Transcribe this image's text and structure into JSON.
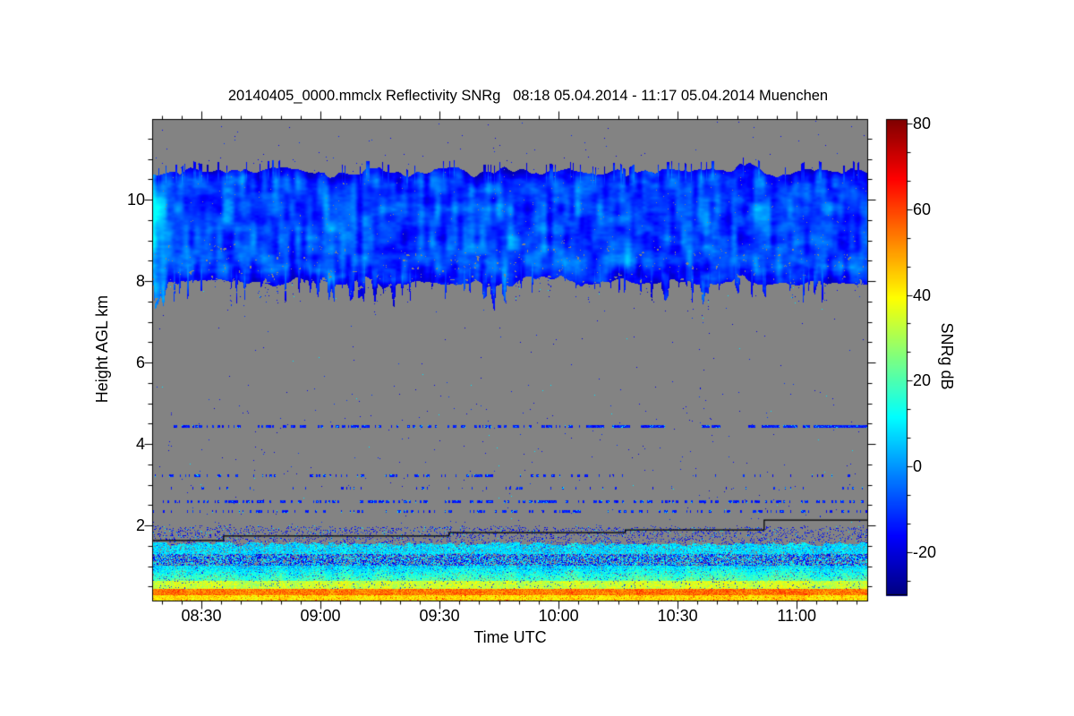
{
  "title": "20140405_0000.mmclx Reflectivity SNRg   08:18 05.04.2014 - 11:17 05.04.2014 Muenchen",
  "chart_data": {
    "type": "heatmap",
    "title": "20140405_0000.mmclx Reflectivity SNRg   08:18 05.04.2014 - 11:17 05.04.2014 Muenchen",
    "station": "Muenchen",
    "file": "20140405_0000.mmclx",
    "quantity": "Reflectivity SNRg",
    "time_start_label": "08:18 05.04.2014",
    "time_end_label": "11:17 05.04.2014",
    "xlabel": "Time UTC",
    "ylabel": "Height AGL km",
    "colorbar_label": "SNRg dB",
    "colormap": "jet",
    "nodata_color": "#838383",
    "grid": false,
    "x_axis": {
      "start_min": 497.6,
      "end_min": 678.0,
      "minor_step_min": 5,
      "ticks": [
        {
          "label": "08:30",
          "min": 510
        },
        {
          "label": "09:00",
          "min": 540
        },
        {
          "label": "09:30",
          "min": 570
        },
        {
          "label": "10:00",
          "min": 600
        },
        {
          "label": "10:30",
          "min": 630
        },
        {
          "label": "11:00",
          "min": 660
        }
      ]
    },
    "y_axis": {
      "min_km": 0.13,
      "max_km": 11.98,
      "minor_step_km": 0.5,
      "ticks": [
        2,
        4,
        6,
        8,
        10
      ]
    },
    "colorbar": {
      "vmin": -30,
      "vmax": 81,
      "ticks": [
        80,
        60,
        40,
        20,
        0,
        -20
      ],
      "minors_per_interval": 2
    },
    "features": {
      "seed": 42,
      "cloud_layer": {
        "top_km_mean": 10.7,
        "top_km_jitter": 0.55,
        "base_km_mean": 8.0,
        "base_km_jitter": 0.45,
        "snr_db_core": -9,
        "snr_db_min": -26,
        "snr_db_max": 12
      },
      "boundary_layer": {
        "top_km_mean": 1.56,
        "cyan_band_km": [
          1.3,
          1.56
        ],
        "mixed_band_km": [
          1.02,
          1.3
        ],
        "green_band_km": [
          0.64,
          1.02
        ],
        "yellow_band_km": [
          0.46,
          0.64
        ],
        "red_line_km": [
          0.3,
          0.46
        ],
        "bottom_band_km": [
          0.13,
          0.3
        ],
        "red_line_snr_db": 54
      },
      "noise_lines": [
        {
          "h_km": 4.43,
          "density": 0.4
        },
        {
          "h_km": 3.22,
          "density": 0.3
        },
        {
          "h_km": 2.92,
          "density": 0.12
        },
        {
          "h_km": 2.6,
          "density": 0.42
        },
        {
          "h_km": 2.36,
          "density": 0.33
        }
      ],
      "speckle_snr_db": [
        -21,
        -6
      ],
      "step_line_points": [
        [
          497.6,
          1.63
        ],
        [
          515.6,
          1.63
        ],
        [
          515.6,
          1.74
        ],
        [
          572.4,
          1.74
        ],
        [
          572.4,
          1.82
        ],
        [
          616.8,
          1.82
        ],
        [
          616.8,
          1.89
        ],
        [
          651.8,
          1.89
        ],
        [
          651.8,
          2.13
        ],
        [
          678.0,
          2.13
        ]
      ]
    }
  }
}
